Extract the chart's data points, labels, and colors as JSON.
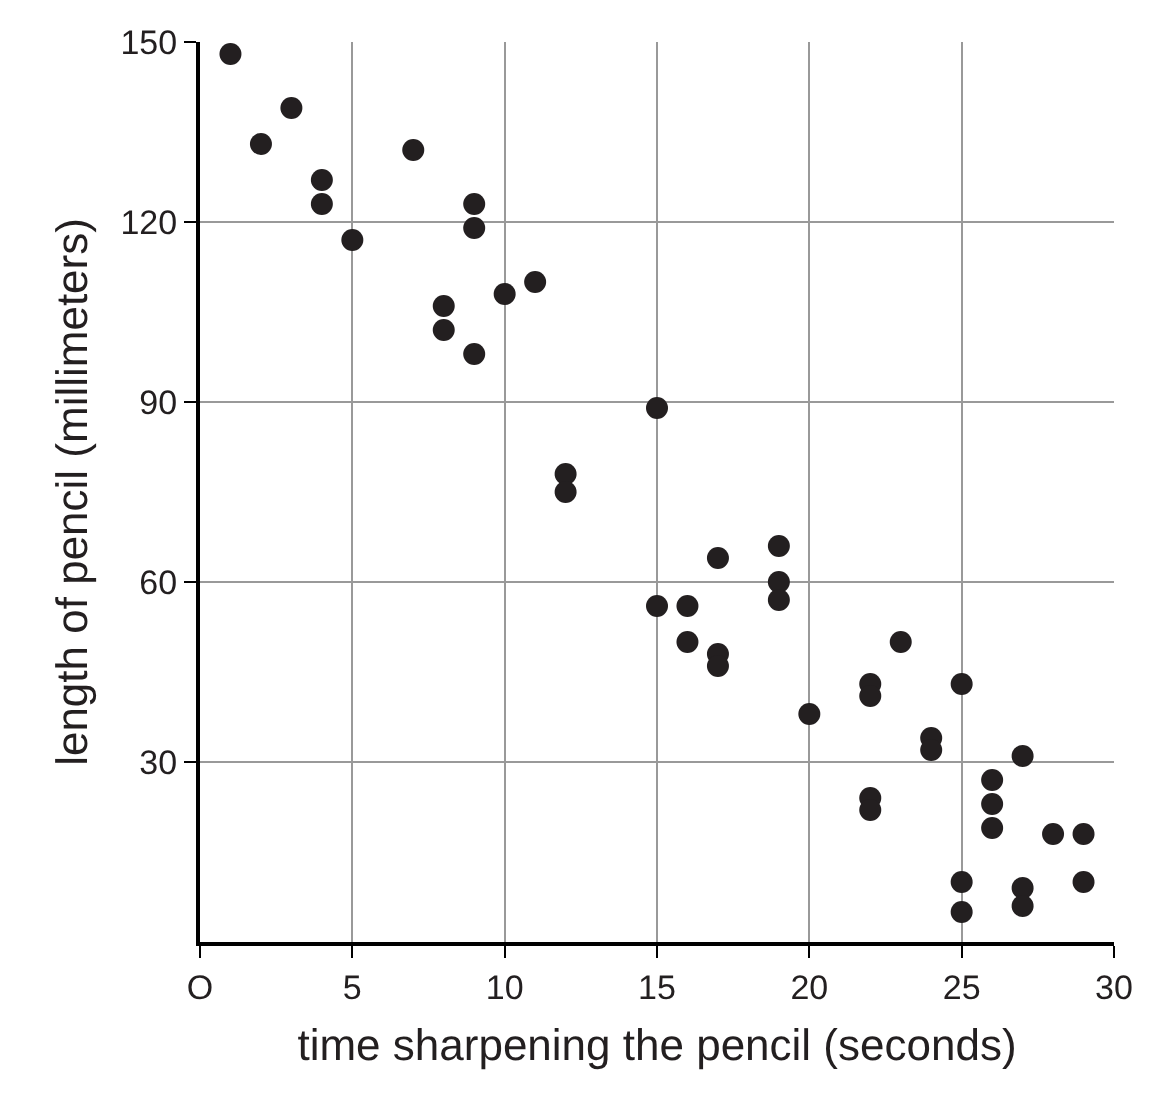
{
  "chart_data": {
    "type": "scatter",
    "xlabel": "time sharpening the pencil (seconds)",
    "ylabel": "length of pencil (millimeters)",
    "x": [
      1,
      2,
      3,
      4,
      4,
      5,
      7,
      8,
      8,
      9,
      9,
      9,
      10,
      11,
      12,
      12,
      15,
      15,
      16,
      16,
      17,
      17,
      17,
      19,
      19,
      19,
      20,
      22,
      22,
      22,
      22,
      23,
      24,
      24,
      25,
      25,
      25,
      26,
      26,
      26,
      27,
      27,
      27,
      28,
      29,
      29
    ],
    "series": [
      {
        "color": "#231f20",
        "values": [
          148,
          133,
          139,
          127,
          123,
          117,
          132,
          106,
          102,
          123,
          119,
          98,
          108,
          110,
          78,
          75,
          89,
          56,
          56,
          50,
          64,
          48,
          46,
          66,
          60,
          57,
          38,
          43,
          41,
          24,
          22,
          50,
          34,
          32,
          43,
          10,
          5,
          27,
          23,
          19,
          31,
          9,
          6,
          18,
          18,
          10
        ]
      }
    ],
    "marker": "circle",
    "grid": true,
    "legend": false,
    "xlim": [
      0,
      30
    ],
    "ylim": [
      0,
      150
    ],
    "xticks": [
      {
        "value": 0,
        "label": "O"
      },
      5,
      10,
      15,
      20,
      25,
      30
    ],
    "yticks": [
      30,
      60,
      90,
      120,
      150
    ]
  }
}
